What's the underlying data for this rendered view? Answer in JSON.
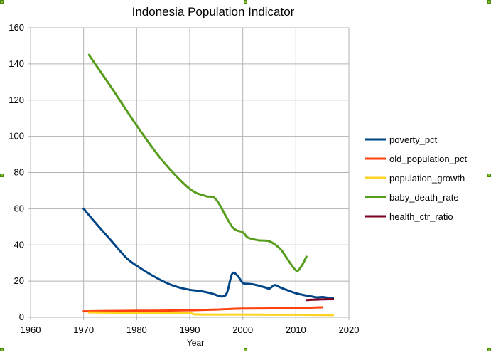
{
  "chart_data": {
    "type": "line",
    "title": "Indonesia Population Indicator",
    "xlabel": "Year",
    "ylabel": "",
    "xlim": [
      1960,
      2020
    ],
    "ylim": [
      0,
      160
    ],
    "xticks": [
      1960,
      1970,
      1980,
      1990,
      2000,
      2010,
      2020
    ],
    "yticks": [
      0,
      20,
      40,
      60,
      80,
      100,
      120,
      140,
      160
    ],
    "grid": true,
    "legend_position": "right",
    "series": [
      {
        "name": "poverty_pct",
        "color": "#004586",
        "x": [
          1970,
          1972,
          1975,
          1978,
          1980,
          1983,
          1986,
          1988,
          1990,
          1992,
          1994,
          1996,
          1997,
          1998,
          1999,
          2000,
          2001,
          2002,
          2004,
          2005,
          2006,
          2007,
          2008,
          2010,
          2012,
          2013,
          2014,
          2015,
          2016,
          2017
        ],
        "values": [
          60,
          53,
          43,
          33,
          28.5,
          23,
          18.5,
          16.5,
          15.2,
          14.5,
          13.3,
          11.5,
          13.5,
          24,
          23,
          19,
          18.5,
          18.2,
          16.7,
          15.9,
          17.8,
          16.6,
          15.4,
          13.3,
          12,
          11.5,
          11,
          11.2,
          10.8,
          10.6
        ]
      },
      {
        "name": "old_population_pct",
        "color": "#ff420e",
        "x": [
          1970,
          1975,
          1980,
          1985,
          1990,
          1995,
          2000,
          2005,
          2010,
          2015
        ],
        "values": [
          3.3,
          3.5,
          3.6,
          3.7,
          3.9,
          4.3,
          4.8,
          4.9,
          5.1,
          5.5
        ]
      },
      {
        "name": "population_growth",
        "color": "#ffd320",
        "x": [
          1971,
          1975,
          1980,
          1985,
          1990,
          1991,
          1995,
          2000,
          2005,
          2010,
          2015,
          2017
        ],
        "values": [
          2.7,
          2.6,
          2.4,
          2.3,
          2.2,
          1.6,
          1.5,
          1.5,
          1.4,
          1.4,
          1.3,
          1.2
        ]
      },
      {
        "name": "baby_death_rate",
        "color": "#579d1c",
        "x": [
          1971,
          1975,
          1980,
          1985,
          1990,
          1993,
          1995,
          1998,
          2000,
          2001,
          2003,
          2005,
          2007,
          2008,
          2010,
          2011,
          2012
        ],
        "values": [
          145,
          128,
          106,
          86,
          71,
          67,
          65,
          50,
          47,
          44,
          42.5,
          42,
          38,
          34,
          26,
          28,
          33.5
        ]
      },
      {
        "name": "health_ctr_ratio",
        "color": "#7e0021",
        "x": [
          2012,
          2013,
          2014,
          2015,
          2016,
          2017
        ],
        "values": [
          9.5,
          9.7,
          9.8,
          9.9,
          10,
          10
        ]
      }
    ]
  }
}
